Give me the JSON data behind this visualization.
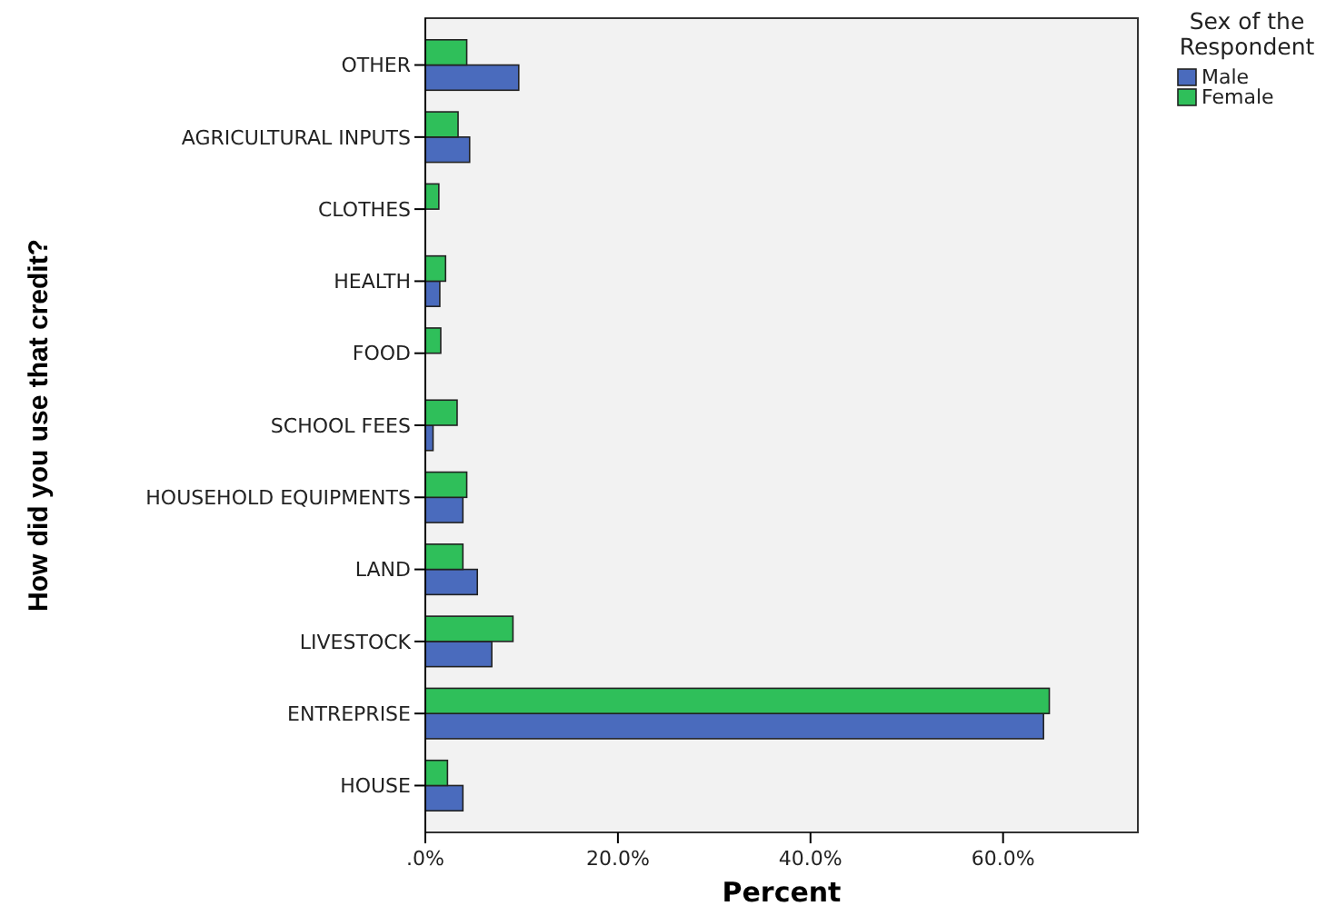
{
  "chart_data": {
    "type": "bar",
    "orientation": "horizontal",
    "xlabel": "Percent",
    "ylabel": "How did you use that credit?",
    "legend_title": "Sex of the Respondent",
    "legend": "right",
    "grid": false,
    "categories": [
      "OTHER",
      "AGRICULTURAL INPUTS",
      "CLOTHES",
      "HEALTH",
      "FOOD",
      "SCHOOL FEES",
      "HOUSEHOLD EQUIPMENTS",
      "LAND",
      "LIVESTOCK",
      "ENTREPRISE",
      "HOUSE"
    ],
    "series": [
      {
        "name": "Male",
        "color": "#4a6bbd",
        "values": [
          9.7,
          4.6,
          0,
          1.5,
          0,
          0.8,
          3.9,
          5.4,
          6.9,
          64.2,
          3.9
        ]
      },
      {
        "name": "Female",
        "color": "#2fbf5a",
        "values": [
          4.3,
          3.4,
          1.4,
          2.1,
          1.6,
          3.3,
          4.3,
          3.9,
          9.1,
          64.8,
          2.3
        ]
      }
    ],
    "xlim": [
      0,
      74
    ],
    "xticks": [
      {
        "value": 0,
        "label": ".0%"
      },
      {
        "value": 20,
        "label": "20.0%"
      },
      {
        "value": 40,
        "label": "40.0%"
      },
      {
        "value": 60,
        "label": "60.0%"
      }
    ]
  }
}
